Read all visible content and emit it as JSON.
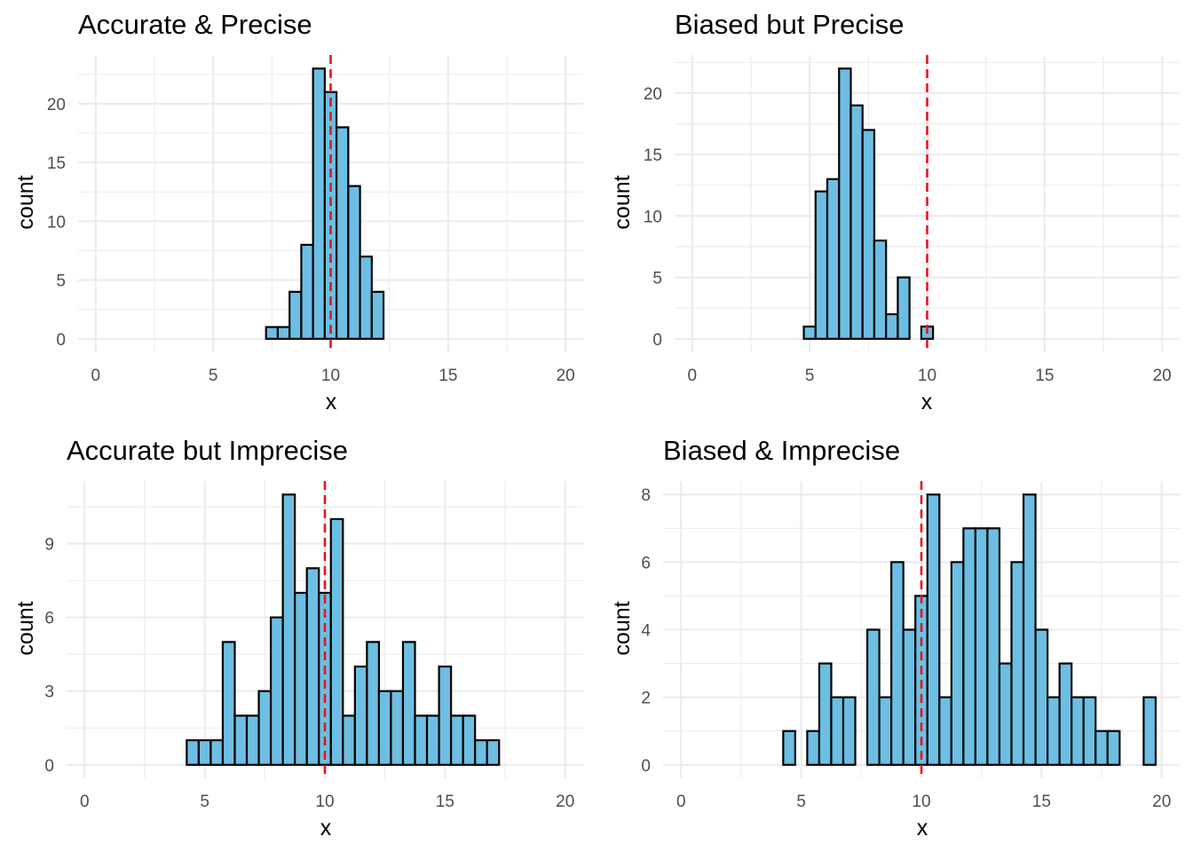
{
  "colors": {
    "bar_fill": "#6cbfe3",
    "bar_outline": "#000000",
    "reference_line": "#e8141c",
    "grid": "#ebebeb",
    "background": "#ffffff"
  },
  "chart_data": [
    {
      "type": "bar",
      "title": "Accurate & Precise",
      "xlabel": "x",
      "ylabel": "count",
      "xlim": [
        0,
        20
      ],
      "ylim": [
        0,
        23
      ],
      "x_ticks": [
        0,
        5,
        10,
        15,
        20
      ],
      "y_ticks": [
        0,
        5,
        10,
        15,
        20
      ],
      "bin_width": 0.5,
      "bin_centers": [
        0.5,
        1.0,
        1.5,
        2.0,
        2.5,
        3.0,
        3.5,
        4.0,
        4.5,
        5.0,
        5.5,
        6.0,
        6.5,
        7.0,
        7.5,
        8.0,
        8.5,
        9.0,
        9.5,
        10.0,
        10.5,
        11.0,
        11.5,
        12.0,
        12.5,
        13.0,
        13.5,
        14.0,
        14.5,
        15.0,
        15.5,
        16.0,
        16.5,
        17.0,
        17.5,
        18.0,
        18.5,
        19.0,
        19.5
      ],
      "values": [
        0,
        0,
        0,
        0,
        0,
        0,
        0,
        0,
        0,
        0,
        0,
        0,
        0,
        0,
        1,
        1,
        4,
        8,
        23,
        21,
        18,
        13,
        7,
        4,
        0,
        0,
        0,
        0,
        0,
        0,
        0,
        0,
        0,
        0,
        0,
        0,
        0,
        0,
        0
      ],
      "reference_x": 10,
      "grid": true,
      "legend": "none"
    },
    {
      "type": "bar",
      "title": "Biased but Precise",
      "xlabel": "x",
      "ylabel": "count",
      "xlim": [
        0,
        20
      ],
      "ylim": [
        0,
        22
      ],
      "x_ticks": [
        0,
        5,
        10,
        15,
        20
      ],
      "y_ticks": [
        0,
        5,
        10,
        15,
        20
      ],
      "bin_width": 0.5,
      "bin_centers": [
        0.5,
        1.0,
        1.5,
        2.0,
        2.5,
        3.0,
        3.5,
        4.0,
        4.5,
        5.0,
        5.5,
        6.0,
        6.5,
        7.0,
        7.5,
        8.0,
        8.5,
        9.0,
        9.5,
        10.0,
        10.5,
        11.0,
        11.5,
        12.0,
        12.5,
        13.0,
        13.5,
        14.0,
        14.5,
        15.0,
        15.5,
        16.0,
        16.5,
        17.0,
        17.5,
        18.0,
        18.5,
        19.0,
        19.5
      ],
      "values": [
        0,
        0,
        0,
        0,
        0,
        0,
        0,
        0,
        0,
        1,
        12,
        13,
        22,
        19,
        17,
        8,
        2,
        5,
        0,
        1,
        0,
        0,
        0,
        0,
        0,
        0,
        0,
        0,
        0,
        0,
        0,
        0,
        0,
        0,
        0,
        0,
        0,
        0,
        0
      ],
      "reference_x": 10,
      "grid": true,
      "legend": "none"
    },
    {
      "type": "bar",
      "title": "Accurate but Imprecise",
      "xlabel": "x",
      "ylabel": "count",
      "xlim": [
        0,
        20
      ],
      "ylim": [
        0,
        11
      ],
      "x_ticks": [
        0,
        5,
        10,
        15,
        20
      ],
      "y_ticks": [
        0,
        3,
        6,
        9
      ],
      "bin_width": 0.5,
      "bin_centers": [
        0.5,
        1.0,
        1.5,
        2.0,
        2.5,
        3.0,
        3.5,
        4.0,
        4.5,
        5.0,
        5.5,
        6.0,
        6.5,
        7.0,
        7.5,
        8.0,
        8.5,
        9.0,
        9.5,
        10.0,
        10.5,
        11.0,
        11.5,
        12.0,
        12.5,
        13.0,
        13.5,
        14.0,
        14.5,
        15.0,
        15.5,
        16.0,
        16.5,
        17.0,
        17.5,
        18.0,
        18.5,
        19.0,
        19.5
      ],
      "values": [
        0,
        0,
        0,
        0,
        0,
        0,
        0,
        0,
        1,
        1,
        1,
        5,
        2,
        2,
        3,
        6,
        11,
        7,
        8,
        7,
        10,
        2,
        4,
        5,
        3,
        3,
        5,
        2,
        2,
        4,
        2,
        2,
        1,
        1,
        0,
        0,
        0,
        0,
        0
      ],
      "reference_x": 10,
      "grid": true,
      "legend": "none"
    },
    {
      "type": "bar",
      "title": "Biased & Imprecise",
      "xlabel": "x",
      "ylabel": "count",
      "xlim": [
        0,
        20
      ],
      "ylim": [
        0,
        8
      ],
      "x_ticks": [
        0,
        5,
        10,
        15,
        20
      ],
      "y_ticks": [
        0,
        2,
        4,
        6,
        8
      ],
      "bin_width": 0.5,
      "bin_centers": [
        0.5,
        1.0,
        1.5,
        2.0,
        2.5,
        3.0,
        3.5,
        4.0,
        4.5,
        5.0,
        5.5,
        6.0,
        6.5,
        7.0,
        7.5,
        8.0,
        8.5,
        9.0,
        9.5,
        10.0,
        10.5,
        11.0,
        11.5,
        12.0,
        12.5,
        13.0,
        13.5,
        14.0,
        14.5,
        15.0,
        15.5,
        16.0,
        16.5,
        17.0,
        17.5,
        18.0,
        18.5,
        19.0,
        19.5
      ],
      "values": [
        0,
        0,
        0,
        0,
        0,
        0,
        0,
        0,
        1,
        0,
        1,
        3,
        2,
        2,
        0,
        4,
        2,
        6,
        4,
        5,
        8,
        2,
        6,
        7,
        7,
        7,
        3,
        6,
        8,
        4,
        2,
        3,
        2,
        2,
        1,
        1,
        0,
        0,
        2
      ],
      "reference_x": 10,
      "grid": true,
      "legend": "none"
    }
  ]
}
